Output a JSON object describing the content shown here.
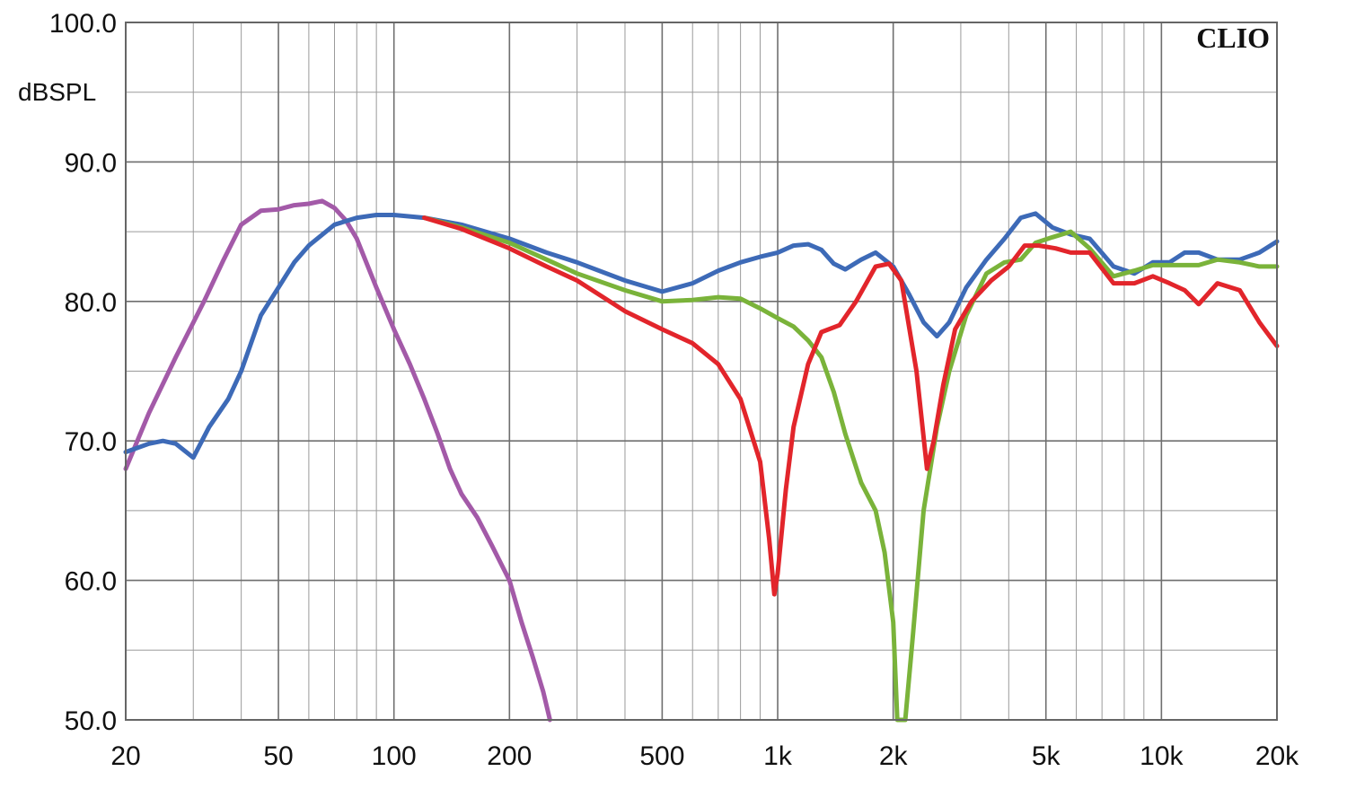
{
  "chart_data": {
    "type": "line",
    "brand": "CLIO",
    "ylabel": "dBSPL",
    "x_scale": "log",
    "xlim": [
      20,
      20000
    ],
    "ylim": [
      50,
      100
    ],
    "grid": true,
    "y_ticks": [
      {
        "value": 100,
        "label": "100.0"
      },
      {
        "value": 90,
        "label": "90.0"
      },
      {
        "value": 80,
        "label": "80.0"
      },
      {
        "value": 70,
        "label": "70.0"
      },
      {
        "value": 60,
        "label": "60.0"
      },
      {
        "value": 50,
        "label": "50.0"
      }
    ],
    "x_ticks": [
      {
        "value": 20,
        "label": "20"
      },
      {
        "value": 50,
        "label": "50"
      },
      {
        "value": 100,
        "label": "100"
      },
      {
        "value": 200,
        "label": "200"
      },
      {
        "value": 500,
        "label": "500"
      },
      {
        "value": 1000,
        "label": "1k"
      },
      {
        "value": 2000,
        "label": "2k"
      },
      {
        "value": 5000,
        "label": "5k"
      },
      {
        "value": 10000,
        "label": "10k"
      },
      {
        "value": 20000,
        "label": "20k"
      }
    ],
    "series": [
      {
        "color": "#a35aa8",
        "points": [
          [
            20,
            68
          ],
          [
            23,
            72
          ],
          [
            27,
            76
          ],
          [
            32,
            80
          ],
          [
            36,
            83
          ],
          [
            40,
            85.5
          ],
          [
            45,
            86.5
          ],
          [
            50,
            86.6
          ],
          [
            55,
            86.9
          ],
          [
            60,
            87
          ],
          [
            65,
            87.2
          ],
          [
            70,
            86.7
          ],
          [
            75,
            85.8
          ],
          [
            80,
            84.5
          ],
          [
            90,
            81
          ],
          [
            100,
            78
          ],
          [
            110,
            75.5
          ],
          [
            120,
            73
          ],
          [
            130,
            70.5
          ],
          [
            140,
            68
          ],
          [
            150,
            66.2
          ],
          [
            165,
            64.5
          ],
          [
            180,
            62.5
          ],
          [
            200,
            60
          ],
          [
            215,
            57
          ],
          [
            230,
            54.5
          ],
          [
            245,
            52
          ],
          [
            255,
            50
          ]
        ]
      },
      {
        "color": "#3d6ab7",
        "points": [
          [
            20,
            69.2
          ],
          [
            23,
            69.8
          ],
          [
            25,
            70
          ],
          [
            27,
            69.8
          ],
          [
            30,
            68.8
          ],
          [
            33,
            71
          ],
          [
            37,
            73
          ],
          [
            40,
            75
          ],
          [
            45,
            79
          ],
          [
            50,
            81
          ],
          [
            55,
            82.8
          ],
          [
            60,
            84
          ],
          [
            70,
            85.5
          ],
          [
            80,
            86
          ],
          [
            90,
            86.2
          ],
          [
            100,
            86.2
          ],
          [
            120,
            86
          ],
          [
            150,
            85.5
          ],
          [
            200,
            84.5
          ],
          [
            250,
            83.5
          ],
          [
            300,
            82.8
          ],
          [
            400,
            81.5
          ],
          [
            500,
            80.7
          ],
          [
            600,
            81.3
          ],
          [
            700,
            82.2
          ],
          [
            800,
            82.8
          ],
          [
            900,
            83.2
          ],
          [
            1000,
            83.5
          ],
          [
            1100,
            84
          ],
          [
            1200,
            84.1
          ],
          [
            1300,
            83.7
          ],
          [
            1400,
            82.7
          ],
          [
            1500,
            82.3
          ],
          [
            1650,
            83
          ],
          [
            1800,
            83.5
          ],
          [
            2000,
            82.5
          ],
          [
            2200,
            80.5
          ],
          [
            2400,
            78.5
          ],
          [
            2600,
            77.5
          ],
          [
            2800,
            78.5
          ],
          [
            3100,
            81
          ],
          [
            3500,
            83
          ],
          [
            3900,
            84.5
          ],
          [
            4300,
            86
          ],
          [
            4700,
            86.3
          ],
          [
            5200,
            85.3
          ],
          [
            5800,
            84.8
          ],
          [
            6500,
            84.5
          ],
          [
            7500,
            82.5
          ],
          [
            8500,
            82
          ],
          [
            9500,
            82.8
          ],
          [
            10500,
            82.8
          ],
          [
            11500,
            83.5
          ],
          [
            12500,
            83.5
          ],
          [
            14000,
            83
          ],
          [
            16000,
            83
          ],
          [
            18000,
            83.5
          ],
          [
            20000,
            84.3
          ]
        ]
      },
      {
        "color": "#7ab33a",
        "points": [
          [
            120,
            86
          ],
          [
            150,
            85.3
          ],
          [
            200,
            84.2
          ],
          [
            250,
            83
          ],
          [
            300,
            82
          ],
          [
            400,
            80.8
          ],
          [
            500,
            80
          ],
          [
            600,
            80.1
          ],
          [
            700,
            80.3
          ],
          [
            800,
            80.2
          ],
          [
            900,
            79.5
          ],
          [
            1000,
            78.8
          ],
          [
            1100,
            78.2
          ],
          [
            1200,
            77.2
          ],
          [
            1300,
            76
          ],
          [
            1400,
            73.5
          ],
          [
            1500,
            70.5
          ],
          [
            1650,
            67
          ],
          [
            1800,
            65
          ],
          [
            1900,
            62
          ],
          [
            2000,
            57
          ],
          [
            2050,
            50
          ],
          [
            2150,
            50
          ],
          [
            2250,
            56
          ],
          [
            2400,
            65
          ],
          [
            2600,
            71
          ],
          [
            2800,
            75
          ],
          [
            3100,
            79
          ],
          [
            3500,
            82
          ],
          [
            3900,
            82.8
          ],
          [
            4300,
            83
          ],
          [
            4700,
            84.2
          ],
          [
            5200,
            84.6
          ],
          [
            5800,
            85
          ],
          [
            6500,
            83.8
          ],
          [
            7500,
            81.8
          ],
          [
            8500,
            82.2
          ],
          [
            9500,
            82.6
          ],
          [
            10500,
            82.6
          ],
          [
            11500,
            82.6
          ],
          [
            12500,
            82.6
          ],
          [
            14000,
            83
          ],
          [
            16000,
            82.8
          ],
          [
            18000,
            82.5
          ],
          [
            20000,
            82.5
          ]
        ]
      },
      {
        "color": "#e2252b",
        "points": [
          [
            120,
            86
          ],
          [
            150,
            85.2
          ],
          [
            200,
            83.8
          ],
          [
            250,
            82.5
          ],
          [
            300,
            81.5
          ],
          [
            400,
            79.3
          ],
          [
            500,
            78
          ],
          [
            600,
            77
          ],
          [
            700,
            75.5
          ],
          [
            800,
            73
          ],
          [
            900,
            68.5
          ],
          [
            950,
            63
          ],
          [
            980,
            59
          ],
          [
            1000,
            60.5
          ],
          [
            1050,
            66.5
          ],
          [
            1100,
            71
          ],
          [
            1200,
            75.5
          ],
          [
            1300,
            77.8
          ],
          [
            1450,
            78.3
          ],
          [
            1600,
            80
          ],
          [
            1800,
            82.5
          ],
          [
            1950,
            82.7
          ],
          [
            2100,
            81.5
          ],
          [
            2300,
            75
          ],
          [
            2450,
            68
          ],
          [
            2550,
            70
          ],
          [
            2700,
            74
          ],
          [
            2900,
            78
          ],
          [
            3200,
            80
          ],
          [
            3600,
            81.5
          ],
          [
            4000,
            82.5
          ],
          [
            4400,
            84
          ],
          [
            4800,
            84
          ],
          [
            5300,
            83.8
          ],
          [
            5800,
            83.5
          ],
          [
            6500,
            83.5
          ],
          [
            7500,
            81.3
          ],
          [
            8500,
            81.3
          ],
          [
            9500,
            81.8
          ],
          [
            10500,
            81.3
          ],
          [
            11500,
            80.8
          ],
          [
            12500,
            79.8
          ],
          [
            14000,
            81.3
          ],
          [
            16000,
            80.8
          ],
          [
            18000,
            78.5
          ],
          [
            20000,
            76.8
          ]
        ]
      }
    ]
  }
}
